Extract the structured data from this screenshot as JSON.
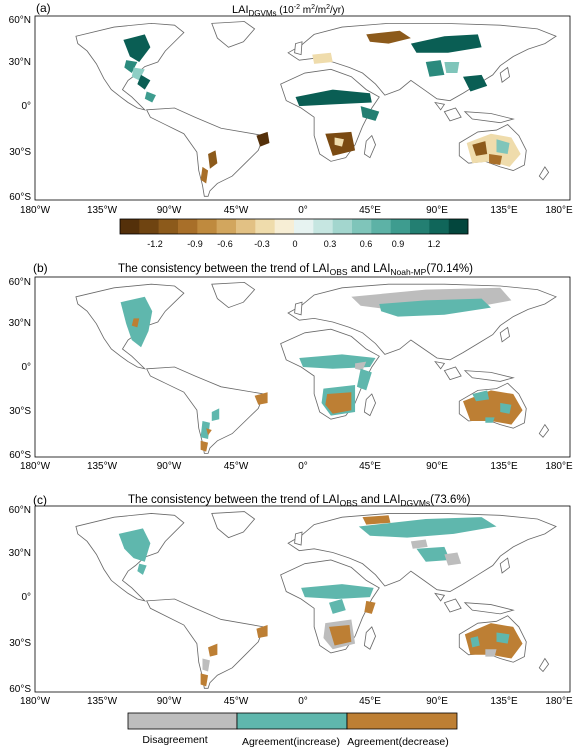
{
  "axes": {
    "x_ticks": [
      "180°W",
      "135°W",
      "90°W",
      "45°W",
      "0°",
      "45°E",
      "90°E",
      "135°E",
      "180°E"
    ],
    "y_ticks": [
      "60°N",
      "30°N",
      "0°",
      "30°S",
      "60°S"
    ]
  },
  "panels": [
    {
      "id": "a",
      "label": "(a)",
      "title_base": "LAI",
      "title_sub": "DGVMs",
      "title_rest": " (10",
      "title_exp1": "-2",
      "title_mid": " m",
      "title_exp2": "2",
      "title_mid2": "/m",
      "title_exp3": "2",
      "title_end": "/yr)"
    },
    {
      "id": "b",
      "label": "(b)",
      "title_pre": "The consistency between the trend of LAI",
      "title_sub1": "OBS",
      "title_mid": " and LAI",
      "title_sub2": "Noah-MP",
      "title_end": "(70.14%)"
    },
    {
      "id": "c",
      "label": "(c)",
      "title_pre": "The consistency between the trend of LAI",
      "title_sub1": "OBS",
      "title_mid": " and LAI",
      "title_sub2": "DGVMs",
      "title_end": "(73.6%)"
    }
  ],
  "colorbar_a": {
    "labels": [
      "-1.2",
      "-0.9",
      "-0.6",
      "-0.3",
      "0",
      "0.3",
      "0.6",
      "0.9",
      "1.2"
    ],
    "colors": [
      "#54300a",
      "#6f4411",
      "#8c5a1b",
      "#a86f29",
      "#bf8a3e",
      "#d2a65e",
      "#e2c184",
      "#efdcac",
      "#f7eed5",
      "#e7f3f1",
      "#c6e6e1",
      "#a3d6ce",
      "#7fc5ba",
      "#5db2a6",
      "#3e9c8f",
      "#237f72",
      "#10665a",
      "#03463d"
    ]
  },
  "legend_c": {
    "items": [
      {
        "label": "Disagreement",
        "color": "#bdbdbd"
      },
      {
        "label": "Agreement(increase)",
        "color": "#5fb7ad"
      },
      {
        "label": "Agreement(decrease)",
        "color": "#bd7f34"
      }
    ]
  },
  "colors": {
    "teal": "#5fb7ad",
    "brown": "#bd7f34",
    "gray": "#bdbdbd",
    "dark_teal": "#0a5e54",
    "dark_brown": "#7a4a12",
    "pale": "#efe2c4"
  }
}
